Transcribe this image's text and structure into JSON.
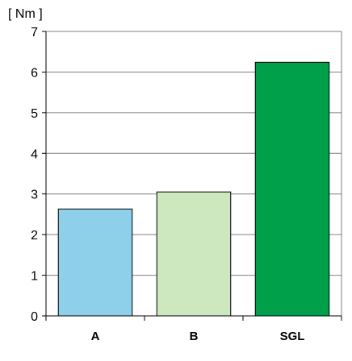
{
  "chart_data": {
    "type": "bar",
    "unit_label": "[ Nm ]",
    "categories": [
      "A",
      "B",
      "SGL"
    ],
    "values": [
      2.63,
      3.05,
      6.24
    ],
    "colors": [
      "#8ECFEA",
      "#CDE7BF",
      "#00A04B"
    ],
    "ylim": [
      0,
      7
    ],
    "yticks": [
      "0",
      "1",
      "2",
      "3",
      "4",
      "5",
      "6",
      "7"
    ],
    "grid": true
  }
}
